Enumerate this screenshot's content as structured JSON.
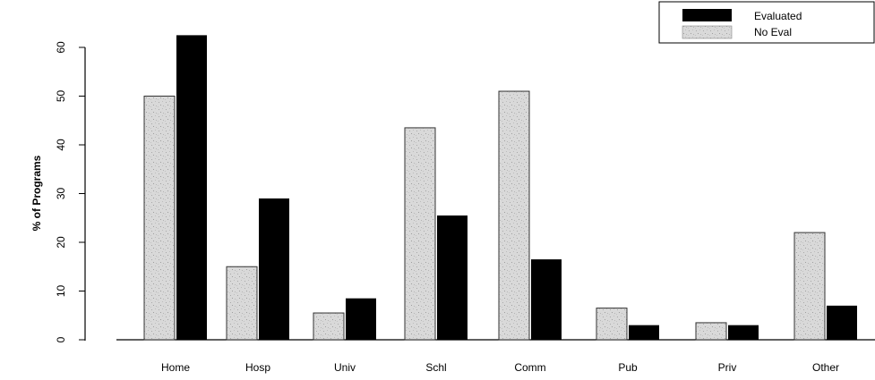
{
  "chart_data": {
    "type": "bar",
    "categories": [
      "Home",
      "Hosp",
      "Univ",
      "Schl",
      "Comm",
      "Pub",
      "Priv",
      "Other"
    ],
    "series": [
      {
        "name": "No Eval",
        "values": [
          50,
          15,
          5.5,
          43.5,
          51,
          6.5,
          3.5,
          22
        ],
        "color": "#d4d4d4"
      },
      {
        "name": "Evaluated",
        "values": [
          62.5,
          29,
          8.5,
          25.5,
          16.5,
          3,
          3,
          7
        ],
        "color": "#000000"
      }
    ],
    "title": "",
    "xlabel": "",
    "ylabel": "% of Programs",
    "ylim": [
      0,
      65
    ],
    "yticks": [
      0,
      10,
      20,
      30,
      40,
      50,
      60
    ],
    "legend_entries": [
      "Evaluated",
      "No Eval"
    ],
    "legend_position": "top-right",
    "grid": false
  }
}
